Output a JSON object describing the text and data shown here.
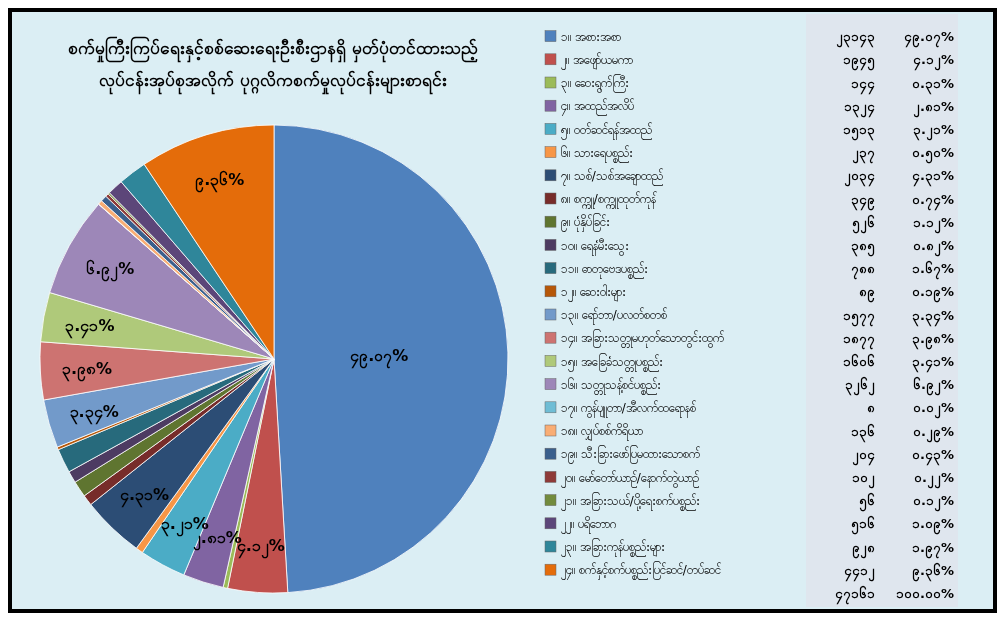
{
  "chart_data": {
    "type": "pie",
    "title": "စက်မှုကြီးကြပ်ရေးနှင့်စစ်ဆေးရေးဦးစီးဌာနရှိ မှတ်ပုံတင်ထားသည့် လုပ်ငန်းအုပ်စုအလိုက် ပုဂ္ဂလိကစက်မှုလုပ်ငန်းများစာရင်း",
    "categories": [
      "၁။ အစားအစာ",
      "၂။ အဖျော်ယမကာ",
      "၃။ ဆေးရွက်ကြီး",
      "၄။ အထည်အလိပ်",
      "၅။ ဝတ်ဆင်ရန်အထည်",
      "၆။ သားရေပစ္စည်း",
      "၇။ သစ်/သစ်အချောထည်",
      "၈။ စက္ကူ/စက္ကူထုတ်ကုန်",
      "၉။ ပုံနှိပ်ခြင်း",
      "၁၀။ ရေနံမီးသွေး",
      "၁၁။ ဓာတုဗေဒပစ္စည်း",
      "၁၂။ ဆေးဝါးများ",
      "၁၃။ ရော်ဘာ/ပလတ်စတစ်",
      "၁၄။ အခြားသတ္တုမဟုတ်သောတွင်းထွက်",
      "၁၅။ အခြေခံသတ္တုပစ္စည်း",
      "၁၆။ သတ္တုသန့်စင်ပစ္စည်း",
      "၁၇။ ကွန်ပျူတာ/အီလက်ထရောနစ်",
      "၁၈။ လျှပ်စစ်ကိရိယာ",
      "၁၉။ သီးခြားဖော်ပြမထားသောစက်",
      "၂၀။ မော်တော်ယာဉ်/နောက်တွဲယာဉ်",
      "၂၁။ အခြားသယ်/ပို့ရေးစက်ပစ္စည်း",
      "၂၂။ ပရိဘောဂ",
      "၂၃။ အခြားကုန်ပစ္စည်းများ",
      "၂၄။ စက်နှင့်စက်ပစ္စည်းပြင်ဆင်/တပ်ဆင်"
    ],
    "values": [
      49.07,
      4.12,
      0.31,
      2.81,
      3.21,
      0.5,
      4.31,
      0.74,
      1.12,
      0.82,
      1.67,
      0.19,
      3.34,
      3.98,
      3.41,
      6.92,
      0.02,
      0.29,
      0.43,
      0.22,
      0.12,
      1.09,
      1.97,
      9.36
    ],
    "value_labels": [
      "၄၉.၀၇%",
      "၄.၁၂%",
      "၀.၃၁%",
      "၂.၈၁%",
      "၃.၂၁%",
      "၀.၅၀%",
      "၄.၃၁%",
      "၀.၇၄%",
      "၁.၁၂%",
      "၀.၈၂%",
      "၁.၆၇%",
      "၀.၁၉%",
      "၃.၃၄%",
      "၃.၉၈%",
      "၃.၄၁%",
      "၆.၉၂%",
      "၀.၀၂%",
      "၀.၂၉%",
      "၀.၄၃%",
      "၀.၂၂%",
      "၀.၁၂%",
      "၁.၀၉%",
      "၁.၉၇%",
      "၉.၃၆%"
    ],
    "colors": [
      "#4f81bd",
      "#c0504d",
      "#9bbb59",
      "#8064a2",
      "#4bacc6",
      "#f79646",
      "#2c4d75",
      "#772c2a",
      "#5f7530",
      "#4d3b62",
      "#276a7c",
      "#b65708",
      "#729aca",
      "#cd7371",
      "#afc97a",
      "#9d87b8",
      "#6fbdd5",
      "#f9ad74",
      "#3a5f8c",
      "#8e3a38",
      "#728b3d",
      "#5c4679",
      "#2f869a",
      "#e46c0a"
    ],
    "legend": "right",
    "annotations": [
      "၂၃၁၄၃",
      "၁၉၄၅",
      "၁၄၄",
      "၁၃၂၄",
      "၁၅၁၃",
      "၂၃၇",
      "၂၀၃၄",
      "၃၄၉",
      "၅၂၆",
      "၃၈၅",
      "၇၈၈",
      "၈၉",
      "၁၅၇၇",
      "၁၈၇၇",
      "၁၆၀၆",
      "၃၂၆၂",
      "၈",
      "၁၃၆",
      "၂၀၄",
      "၁၀၂",
      "၅၆",
      "၅၁၆",
      "၉၂၈",
      "၄၄၁၂",
      "၄၇၁၆၁",
      "၁၀၀.၀၀%"
    ]
  }
}
